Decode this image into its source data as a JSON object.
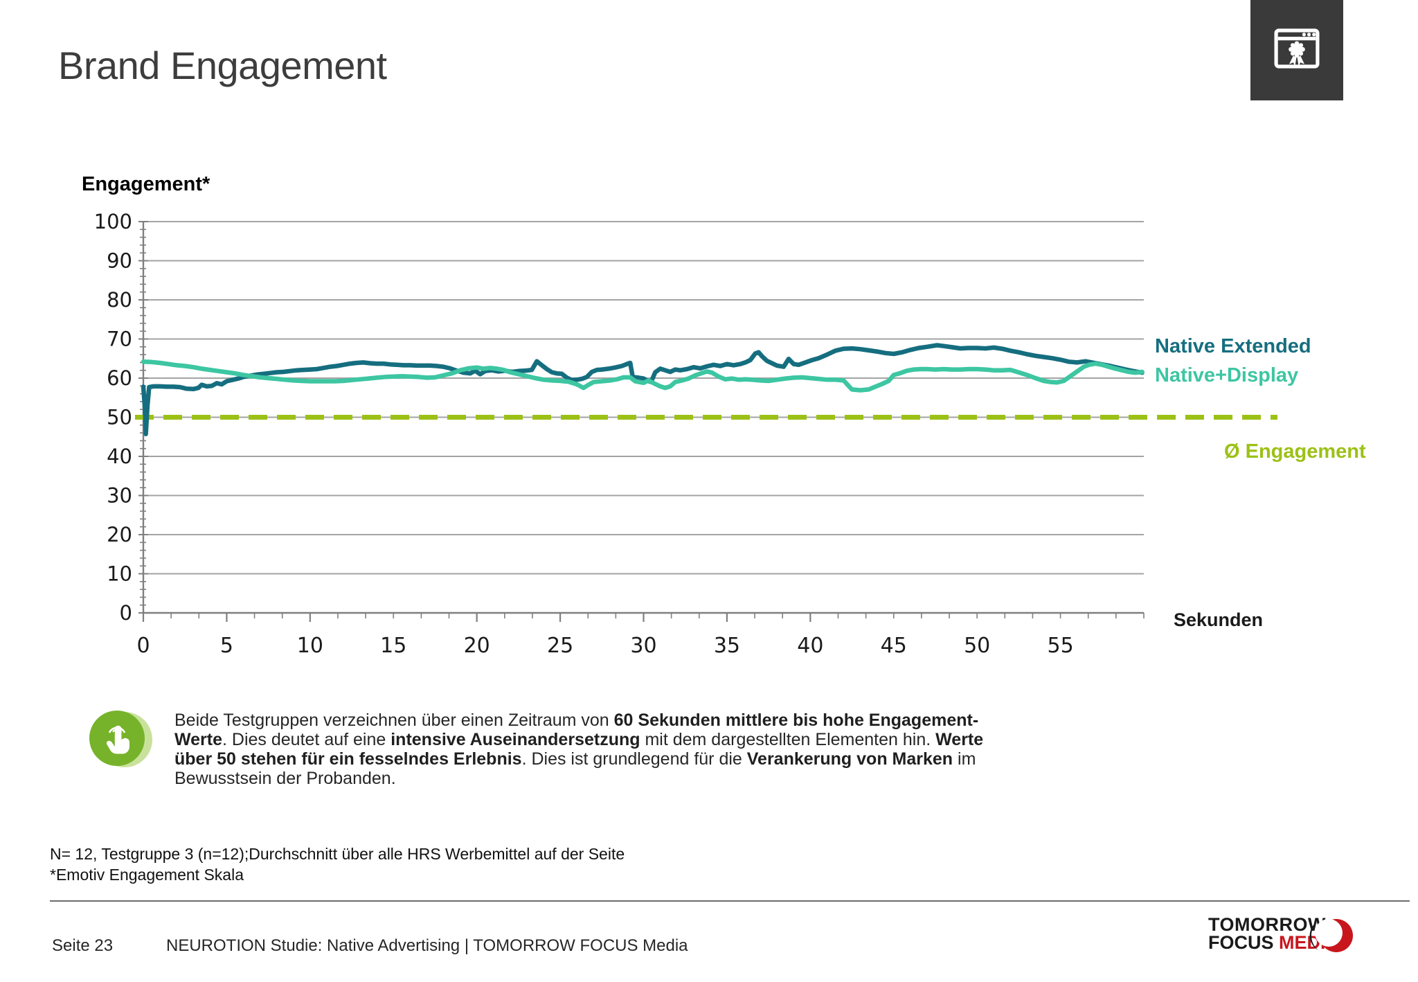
{
  "slide": {
    "title": "Brand Engagement",
    "corner_icon": "certificate-window-icon",
    "page_label": "Seite 23",
    "footer_text": "NEUROTION Studie: Native Advertising | TOMORROW FOCUS Media",
    "footnotes": [
      "N= 12, Testgruppe 3 (n=12);Durchschnitt über alle HRS Werbemittel auf der Seite",
      "*Emotiv Engagement Skala"
    ],
    "logo": {
      "line1": "TOMORROW",
      "line2_black": "FOCUS ",
      "line2_red": "MEDIA",
      "red": "#c8161d"
    },
    "callout": {
      "icon": "touch-gesture-icon",
      "icon_color": "#76b32a",
      "icon_shadow_color": "#c9e29b",
      "segments": [
        {
          "text": "Beide Testgruppen verzeichnen über einen Zeitraum von ",
          "bold": false
        },
        {
          "text": "60 Sekunden mittlere bis hohe Engagement-Werte",
          "bold": true
        },
        {
          "text": ". Dies deutet auf eine ",
          "bold": false
        },
        {
          "text": "intensive Auseinandersetzung",
          "bold": true
        },
        {
          "text": " mit dem dargestellten Elementen hin. ",
          "bold": false
        },
        {
          "text": "Werte über 50 stehen für ein fesselndes Erlebnis",
          "bold": true
        },
        {
          "text": ". Dies ist grundlegend für die ",
          "bold": false
        },
        {
          "text": "Verankerung von Marken",
          "bold": true
        },
        {
          "text": " im Bewusstsein der Probanden.",
          "bold": false
        }
      ]
    }
  },
  "chart_data": {
    "type": "line",
    "title": "Engagement*",
    "xlabel": "Sekunden",
    "ylabel": "Engagement*",
    "xlim": [
      0,
      60
    ],
    "ylim": [
      0,
      100
    ],
    "y_ticks": [
      0,
      10,
      20,
      30,
      40,
      50,
      60,
      70,
      80,
      90,
      100
    ],
    "y_minor_step": 2,
    "x_tick_labels": [
      0,
      5,
      10,
      15,
      20,
      25,
      30,
      35,
      40,
      45,
      50,
      55
    ],
    "x_major_step": 5,
    "x_minor_divisions_per_major": 3,
    "grid": "horizontal",
    "legend_position": "right",
    "reference_line": {
      "label": "Ø Engagement",
      "value": 50,
      "style": "dashed",
      "color": "#9cc116"
    },
    "series": [
      {
        "name": "Native Extended",
        "color": "#156e7f",
        "points": [
          [
            0,
            57.8
          ],
          [
            0.1,
            52
          ],
          [
            0.15,
            45.7
          ],
          [
            0.25,
            53
          ],
          [
            0.35,
            57.7
          ],
          [
            0.6,
            57.9
          ],
          [
            1,
            57.9
          ],
          [
            1.4,
            57.8
          ],
          [
            1.8,
            57.8
          ],
          [
            2.2,
            57.7
          ],
          [
            2.6,
            57.3
          ],
          [
            3,
            57.2
          ],
          [
            3.3,
            57.5
          ],
          [
            3.5,
            58.3
          ],
          [
            3.8,
            57.9
          ],
          [
            4.1,
            58
          ],
          [
            4.4,
            58.7
          ],
          [
            4.7,
            58.4
          ],
          [
            5,
            59.2
          ],
          [
            5.3,
            59.5
          ],
          [
            5.7,
            59.9
          ],
          [
            6,
            60.3
          ],
          [
            6.4,
            60.6
          ],
          [
            6.8,
            60.9
          ],
          [
            7.2,
            61.1
          ],
          [
            7.6,
            61.3
          ],
          [
            8,
            61.5
          ],
          [
            8.4,
            61.6
          ],
          [
            8.8,
            61.8
          ],
          [
            9.2,
            62
          ],
          [
            9.6,
            62.1
          ],
          [
            10,
            62.2
          ],
          [
            10.4,
            62.3
          ],
          [
            10.8,
            62.6
          ],
          [
            11.2,
            62.9
          ],
          [
            11.6,
            63.1
          ],
          [
            12,
            63.4
          ],
          [
            12.4,
            63.7
          ],
          [
            12.8,
            63.9
          ],
          [
            13.2,
            64
          ],
          [
            13.6,
            63.8
          ],
          [
            14,
            63.7
          ],
          [
            14.4,
            63.7
          ],
          [
            14.8,
            63.5
          ],
          [
            15.2,
            63.4
          ],
          [
            15.6,
            63.3
          ],
          [
            16,
            63.3
          ],
          [
            16.4,
            63.2
          ],
          [
            16.8,
            63.2
          ],
          [
            17.2,
            63.2
          ],
          [
            17.6,
            63.1
          ],
          [
            18,
            62.9
          ],
          [
            18.4,
            62.5
          ],
          [
            18.8,
            61.9
          ],
          [
            19.2,
            61.4
          ],
          [
            19.6,
            61.2
          ],
          [
            19.9,
            61.9
          ],
          [
            20.2,
            61
          ],
          [
            20.5,
            61.8
          ],
          [
            20.9,
            62
          ],
          [
            21.3,
            61.7
          ],
          [
            21.7,
            61.9
          ],
          [
            22.1,
            61.6
          ],
          [
            22.5,
            61.8
          ],
          [
            22.9,
            61.9
          ],
          [
            23.3,
            62.1
          ],
          [
            23.6,
            64.3
          ],
          [
            23.9,
            63.3
          ],
          [
            24.2,
            62.3
          ],
          [
            24.5,
            61.5
          ],
          [
            24.8,
            61.2
          ],
          [
            25.1,
            61.1
          ],
          [
            25.4,
            60.1
          ],
          [
            25.7,
            59.5
          ],
          [
            26,
            59.6
          ],
          [
            26.3,
            59.8
          ],
          [
            26.6,
            60.3
          ],
          [
            26.9,
            61.6
          ],
          [
            27.2,
            62.1
          ],
          [
            27.5,
            62.2
          ],
          [
            27.9,
            62.4
          ],
          [
            28.3,
            62.7
          ],
          [
            28.7,
            63.1
          ],
          [
            29,
            63.6
          ],
          [
            29.2,
            63.9
          ],
          [
            29.35,
            60.3
          ],
          [
            29.7,
            60.1
          ],
          [
            30,
            59.9
          ],
          [
            30.2,
            59.4
          ],
          [
            30.45,
            59
          ],
          [
            30.7,
            61.5
          ],
          [
            31,
            62.4
          ],
          [
            31.3,
            62
          ],
          [
            31.6,
            61.6
          ],
          [
            31.9,
            62.2
          ],
          [
            32.2,
            62
          ],
          [
            32.6,
            62.3
          ],
          [
            33,
            62.8
          ],
          [
            33.4,
            62.5
          ],
          [
            33.8,
            63
          ],
          [
            34.2,
            63.4
          ],
          [
            34.6,
            63.1
          ],
          [
            35,
            63.6
          ],
          [
            35.4,
            63.3
          ],
          [
            35.8,
            63.6
          ],
          [
            36.1,
            64
          ],
          [
            36.4,
            64.6
          ],
          [
            36.7,
            66.3
          ],
          [
            36.9,
            66.6
          ],
          [
            37.1,
            65.6
          ],
          [
            37.4,
            64.4
          ],
          [
            37.7,
            63.8
          ],
          [
            38,
            63.2
          ],
          [
            38.4,
            62.9
          ],
          [
            38.7,
            64.9
          ],
          [
            39,
            63.6
          ],
          [
            39.3,
            63.4
          ],
          [
            39.7,
            64
          ],
          [
            40.1,
            64.6
          ],
          [
            40.5,
            65.1
          ],
          [
            41,
            66
          ],
          [
            41.5,
            67
          ],
          [
            42,
            67.5
          ],
          [
            42.5,
            67.6
          ],
          [
            43,
            67.4
          ],
          [
            43.5,
            67.1
          ],
          [
            44,
            66.8
          ],
          [
            44.5,
            66.4
          ],
          [
            45,
            66.2
          ],
          [
            45.5,
            66.6
          ],
          [
            46,
            67.2
          ],
          [
            46.5,
            67.7
          ],
          [
            47,
            68
          ],
          [
            47.6,
            68.4
          ],
          [
            48,
            68.2
          ],
          [
            48.5,
            67.9
          ],
          [
            49,
            67.6
          ],
          [
            49.5,
            67.7
          ],
          [
            50,
            67.7
          ],
          [
            50.5,
            67.6
          ],
          [
            51,
            67.8
          ],
          [
            51.5,
            67.5
          ],
          [
            52,
            67
          ],
          [
            52.5,
            66.6
          ],
          [
            53,
            66.1
          ],
          [
            53.5,
            65.7
          ],
          [
            54,
            65.4
          ],
          [
            54.5,
            65.1
          ],
          [
            55,
            64.7
          ],
          [
            55.5,
            64.2
          ],
          [
            56,
            64
          ],
          [
            56.5,
            64.3
          ],
          [
            57,
            63.9
          ],
          [
            57.5,
            63.5
          ],
          [
            58,
            63.1
          ],
          [
            58.5,
            62.6
          ],
          [
            59,
            62.1
          ],
          [
            59.5,
            61.7
          ],
          [
            59.9,
            61.4
          ]
        ]
      },
      {
        "name": "Native+Display",
        "color": "#3dc6a2",
        "points": [
          [
            0,
            64.2
          ],
          [
            0.5,
            64.1
          ],
          [
            1,
            63.9
          ],
          [
            1.5,
            63.6
          ],
          [
            2,
            63.3
          ],
          [
            2.5,
            63.1
          ],
          [
            3,
            62.8
          ],
          [
            3.5,
            62.4
          ],
          [
            4,
            62.1
          ],
          [
            4.5,
            61.8
          ],
          [
            5,
            61.5
          ],
          [
            5.5,
            61.2
          ],
          [
            6,
            60.8
          ],
          [
            6.5,
            60.5
          ],
          [
            7,
            60.2
          ],
          [
            7.5,
            60
          ],
          [
            8,
            59.8
          ],
          [
            8.5,
            59.6
          ],
          [
            9,
            59.4
          ],
          [
            9.5,
            59.3
          ],
          [
            10,
            59.2
          ],
          [
            10.5,
            59.2
          ],
          [
            11,
            59.2
          ],
          [
            11.5,
            59.2
          ],
          [
            12,
            59.3
          ],
          [
            12.5,
            59.5
          ],
          [
            13,
            59.7
          ],
          [
            13.5,
            59.9
          ],
          [
            14,
            60.1
          ],
          [
            14.5,
            60.3
          ],
          [
            15,
            60.4
          ],
          [
            15.5,
            60.5
          ],
          [
            16,
            60.4
          ],
          [
            16.5,
            60.3
          ],
          [
            17,
            60.1
          ],
          [
            17.5,
            60.2
          ],
          [
            18,
            60.7
          ],
          [
            18.5,
            61.2
          ],
          [
            19,
            62
          ],
          [
            19.5,
            62.5
          ],
          [
            20,
            62.7
          ],
          [
            20.4,
            62.4
          ],
          [
            20.8,
            62.6
          ],
          [
            21.2,
            62.4
          ],
          [
            21.6,
            62.1
          ],
          [
            22,
            61.5
          ],
          [
            22.5,
            61
          ],
          [
            23,
            60.5
          ],
          [
            23.5,
            60
          ],
          [
            24,
            59.6
          ],
          [
            24.5,
            59.4
          ],
          [
            25,
            59.3
          ],
          [
            25.5,
            59.1
          ],
          [
            26,
            58.4
          ],
          [
            26.4,
            57.5
          ],
          [
            26.7,
            58.3
          ],
          [
            27,
            59
          ],
          [
            27.5,
            59.2
          ],
          [
            28,
            59.4
          ],
          [
            28.4,
            59.7
          ],
          [
            28.8,
            60.2
          ],
          [
            29.2,
            60.2
          ],
          [
            29.5,
            59.2
          ],
          [
            30,
            58.8
          ],
          [
            30.3,
            59.4
          ],
          [
            30.6,
            58.7
          ],
          [
            31,
            57.9
          ],
          [
            31.3,
            57.5
          ],
          [
            31.6,
            57.9
          ],
          [
            31.9,
            59
          ],
          [
            32.3,
            59.4
          ],
          [
            32.7,
            59.9
          ],
          [
            33.1,
            60.7
          ],
          [
            33.5,
            61.3
          ],
          [
            33.8,
            61.7
          ],
          [
            34.1,
            61.4
          ],
          [
            34.5,
            60.4
          ],
          [
            34.9,
            59.7
          ],
          [
            35.3,
            59.9
          ],
          [
            35.7,
            59.6
          ],
          [
            36.1,
            59.7
          ],
          [
            36.5,
            59.6
          ],
          [
            37,
            59.4
          ],
          [
            37.5,
            59.3
          ],
          [
            38,
            59.6
          ],
          [
            38.5,
            59.9
          ],
          [
            39,
            60.1
          ],
          [
            39.5,
            60.2
          ],
          [
            40,
            60
          ],
          [
            40.5,
            59.8
          ],
          [
            41,
            59.6
          ],
          [
            41.5,
            59.6
          ],
          [
            42,
            59.4
          ],
          [
            42.3,
            58
          ],
          [
            42.5,
            57.1
          ],
          [
            43,
            56.9
          ],
          [
            43.5,
            57.1
          ],
          [
            43.9,
            57.8
          ],
          [
            44.3,
            58.5
          ],
          [
            44.7,
            59.3
          ],
          [
            45,
            60.8
          ],
          [
            45.4,
            61.3
          ],
          [
            45.8,
            61.9
          ],
          [
            46.2,
            62.2
          ],
          [
            46.6,
            62.3
          ],
          [
            47,
            62.3
          ],
          [
            47.5,
            62.2
          ],
          [
            48,
            62.3
          ],
          [
            48.5,
            62.2
          ],
          [
            49,
            62.2
          ],
          [
            49.5,
            62.3
          ],
          [
            50,
            62.3
          ],
          [
            50.5,
            62.2
          ],
          [
            51,
            62
          ],
          [
            51.5,
            62
          ],
          [
            52,
            62.1
          ],
          [
            52.4,
            61.6
          ],
          [
            53,
            60.8
          ],
          [
            53.5,
            60
          ],
          [
            54,
            59.3
          ],
          [
            54.4,
            59
          ],
          [
            54.8,
            58.9
          ],
          [
            55.2,
            59.3
          ],
          [
            55.5,
            60.2
          ],
          [
            55.8,
            61.1
          ],
          [
            56.1,
            62
          ],
          [
            56.4,
            62.9
          ],
          [
            56.7,
            63.4
          ],
          [
            57.1,
            63.7
          ],
          [
            57.5,
            63.4
          ],
          [
            57.9,
            62.9
          ],
          [
            58.3,
            62.4
          ],
          [
            58.7,
            62
          ],
          [
            59.1,
            61.6
          ],
          [
            59.5,
            61.4
          ],
          [
            59.9,
            61.6
          ]
        ]
      }
    ]
  }
}
